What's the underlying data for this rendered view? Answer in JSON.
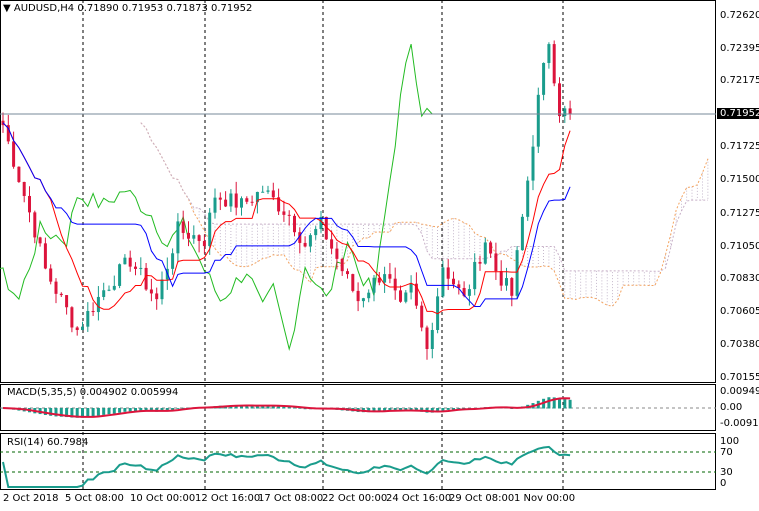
{
  "header": {
    "symbol": "AUDUSD,H4",
    "open": "0.71890",
    "high": "0.71953",
    "low": "0.71873",
    "close": "0.71952"
  },
  "price_axis": [
    "0.72620",
    "0.72395",
    "0.72175",
    "0.71952",
    "0.71725",
    "0.71500",
    "0.71275",
    "0.71050",
    "0.70830",
    "0.70605",
    "0.70380",
    "0.70155"
  ],
  "current_price": "0.71952",
  "macd": {
    "label": "MACD(5,35,5)",
    "main": "0.004902",
    "signal": "0.005994",
    "axis": [
      "0.009493",
      "0.00",
      "-0.009102"
    ]
  },
  "rsi": {
    "label": "RSI(14)",
    "value": "60.7984",
    "axis": [
      "100",
      "70",
      "30",
      "0"
    ]
  },
  "time_axis": [
    "2 Oct 2018",
    "5 Oct 08:00",
    "10 Oct 00:00",
    "12 Oct 16:00",
    "17 Oct 08:00",
    "22 Oct 00:00",
    "24 Oct 16:00",
    "29 Oct 08:00",
    "1 Nov 00:00"
  ],
  "colors": {
    "bull": "#1a9c8c",
    "bear": "#dc143c",
    "tenkan": "#ff0000",
    "kijun": "#0000ff",
    "chikou": "#22bb22",
    "spanA": "#f4a460",
    "spanB": "#c8b0c8"
  },
  "chart_data": {
    "type": "candlestick",
    "price_range": [
      0.70155,
      0.7262
    ],
    "close_waypoints": [
      [
        0,
        0.71878
      ],
      [
        6,
        0.71163
      ],
      [
        8,
        0.7089
      ],
      [
        14,
        0.70482
      ],
      [
        19,
        0.70754
      ],
      [
        24,
        0.70959
      ],
      [
        29,
        0.70686
      ],
      [
        33,
        0.71163
      ],
      [
        38,
        0.71095
      ],
      [
        40,
        0.71401
      ],
      [
        45,
        0.71333
      ],
      [
        49,
        0.71435
      ],
      [
        54,
        0.71265
      ],
      [
        57,
        0.71061
      ],
      [
        60,
        0.71197
      ],
      [
        64,
        0.7089
      ],
      [
        67,
        0.70686
      ],
      [
        72,
        0.7089
      ],
      [
        75,
        0.70618
      ],
      [
        77,
        0.70754
      ],
      [
        80,
        0.70346
      ],
      [
        83,
        0.70925
      ],
      [
        87,
        0.70686
      ],
      [
        91,
        0.71095
      ],
      [
        93,
        0.7089
      ],
      [
        96,
        0.7072
      ],
      [
        99,
        0.71503
      ],
      [
        101,
        0.72048
      ],
      [
        103,
        0.72457
      ],
      [
        105,
        0.7198
      ],
      [
        107,
        0.71952
      ]
    ]
  }
}
